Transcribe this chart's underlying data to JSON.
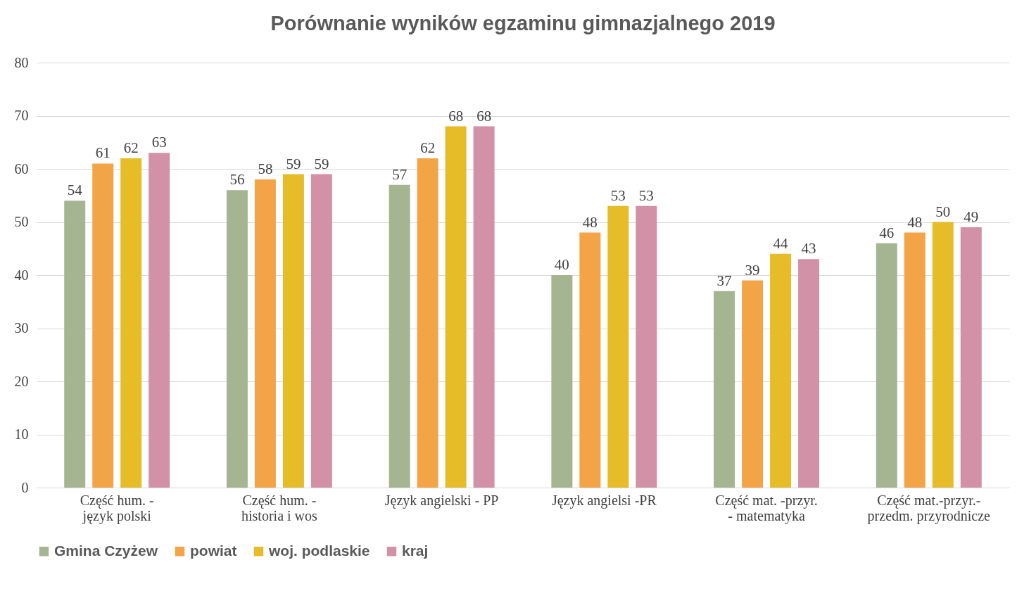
{
  "chart_data": {
    "type": "bar",
    "title": "Porównanie wyników egzaminu gimnazjalnego 2019",
    "categories": [
      "Część hum. - język polski",
      "Część hum. - historia i wos",
      "Język angielski - PP",
      "Język angielsi -PR",
      "Część mat. -przyr. - matematyka",
      "Część mat.-przyr.- przedm. przyrodnicze"
    ],
    "series": [
      {
        "name": "Gmina Czyżew",
        "color": "#a5b592",
        "values": [
          54,
          56,
          57,
          40,
          37,
          46
        ]
      },
      {
        "name": "powiat",
        "color": "#f3a447",
        "values": [
          61,
          58,
          62,
          48,
          39,
          48
        ]
      },
      {
        "name": "woj. podlaskie",
        "color": "#e6bc29",
        "values": [
          62,
          59,
          68,
          53,
          44,
          50
        ]
      },
      {
        "name": "kraj",
        "color": "#d291a7",
        "values": [
          63,
          59,
          68,
          53,
          43,
          49
        ]
      }
    ],
    "ylim": [
      0,
      80
    ],
    "yticks": [
      0,
      10,
      20,
      30,
      40,
      50,
      60,
      70,
      80
    ],
    "grid": "y",
    "legend": "bottom",
    "data_labels": true
  }
}
